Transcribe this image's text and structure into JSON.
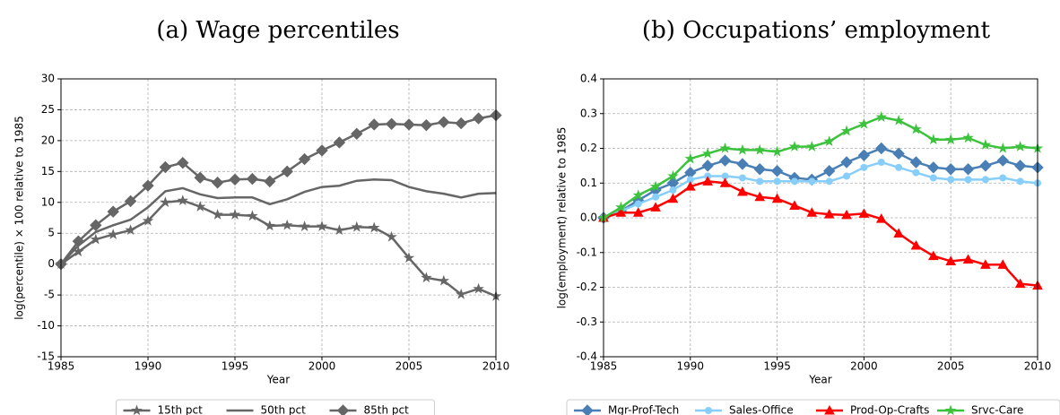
{
  "chart_data": [
    {
      "type": "line",
      "title": "(a) Wage percentiles",
      "xlabel": "Year",
      "ylabel": "log(percentile) × 100 relative to 1985",
      "x": [
        1985,
        1986,
        1987,
        1988,
        1989,
        1990,
        1991,
        1992,
        1993,
        1994,
        1995,
        1996,
        1997,
        1998,
        1999,
        2000,
        2001,
        2002,
        2003,
        2004,
        2005,
        2006,
        2007,
        2008,
        2009,
        2010
      ],
      "xlim": [
        1985,
        2010
      ],
      "xticks": [
        1985,
        1990,
        1995,
        2000,
        2005,
        2010
      ],
      "ylim": [
        -15,
        30
      ],
      "yticks": [
        -15,
        -10,
        -5,
        0,
        5,
        10,
        15,
        20,
        25,
        30
      ],
      "grid": true,
      "series": [
        {
          "name": "15th pct",
          "color": "#666666",
          "marker": "star",
          "values": [
            0,
            2,
            4,
            4.8,
            5.5,
            7,
            10,
            10.3,
            9.3,
            8,
            8,
            7.8,
            6.2,
            6.3,
            6.1,
            6.1,
            5.5,
            6,
            5.9,
            4.4,
            1,
            -2.2,
            -2.7,
            -4.9,
            -4,
            -5.2
          ]
        },
        {
          "name": "50th pct",
          "color": "#666666",
          "marker": "none",
          "values": [
            0,
            3,
            5.2,
            6.3,
            7.2,
            9.2,
            11.8,
            12.3,
            11.3,
            10.7,
            10.8,
            10.8,
            9.7,
            10.5,
            11.7,
            12.5,
            12.7,
            13.5,
            13.7,
            13.6,
            12.5,
            11.8,
            11.4,
            10.8,
            11.4,
            11.5
          ]
        },
        {
          "name": "85th pct",
          "color": "#666666",
          "marker": "diamond",
          "values": [
            0,
            3.7,
            6.3,
            8.5,
            10.2,
            12.7,
            15.7,
            16.4,
            14,
            13.2,
            13.7,
            13.8,
            13.4,
            15,
            17,
            18.4,
            19.7,
            21.1,
            22.6,
            22.7,
            22.6,
            22.5,
            23,
            22.8,
            23.6,
            24.1
          ]
        }
      ]
    },
    {
      "type": "line",
      "title": "(b) Occupations’ employment",
      "xlabel": "Year",
      "ylabel": "log(employment) relative to 1985",
      "x": [
        1985,
        1986,
        1987,
        1988,
        1989,
        1990,
        1991,
        1992,
        1993,
        1994,
        1995,
        1996,
        1997,
        1998,
        1999,
        2000,
        2001,
        2002,
        2003,
        2004,
        2005,
        2006,
        2007,
        2008,
        2009,
        2010
      ],
      "xlim": [
        1985,
        2010
      ],
      "xticks": [
        1985,
        1990,
        1995,
        2000,
        2005,
        2010
      ],
      "ylim": [
        -0.4,
        0.4
      ],
      "yticks": [
        -0.4,
        -0.3,
        -0.2,
        -0.1,
        {
          "value": 0,
          "label": "0.0"
        },
        0.1,
        0.2,
        0.3,
        0.4
      ],
      "grid": true,
      "series": [
        {
          "name": "Mgr-Prof-Tech",
          "color": "#4a7fb5",
          "marker": "diamond",
          "values": [
            0,
            0.02,
            0.05,
            0.08,
            0.1,
            0.13,
            0.15,
            0.165,
            0.155,
            0.14,
            0.135,
            0.115,
            0.11,
            0.135,
            0.16,
            0.18,
            0.2,
            0.185,
            0.16,
            0.145,
            0.14,
            0.14,
            0.15,
            0.165,
            0.15,
            0.145
          ]
        },
        {
          "name": "Sales-Office",
          "color": "#87cefa",
          "marker": "circle",
          "values": [
            0,
            0.02,
            0.04,
            0.06,
            0.08,
            0.11,
            0.12,
            0.12,
            0.115,
            0.105,
            0.105,
            0.105,
            0.105,
            0.105,
            0.12,
            0.145,
            0.16,
            0.145,
            0.13,
            0.115,
            0.11,
            0.11,
            0.11,
            0.115,
            0.105,
            0.1
          ]
        },
        {
          "name": "Prod-Op-Crafts",
          "color": "#ff0000",
          "marker": "triangle",
          "values": [
            0,
            0.015,
            0.015,
            0.03,
            0.055,
            0.09,
            0.105,
            0.1,
            0.075,
            0.06,
            0.055,
            0.035,
            0.015,
            0.01,
            0.008,
            0.012,
            -0.003,
            -0.045,
            -0.08,
            -0.11,
            -0.125,
            -0.12,
            -0.135,
            -0.135,
            -0.19,
            -0.195
          ]
        },
        {
          "name": "Srvc-Care",
          "color": "#3cc23c",
          "marker": "star",
          "values": [
            0,
            0.03,
            0.065,
            0.09,
            0.12,
            0.17,
            0.185,
            0.2,
            0.195,
            0.195,
            0.19,
            0.205,
            0.205,
            0.22,
            0.25,
            0.27,
            0.29,
            0.28,
            0.255,
            0.225,
            0.225,
            0.23,
            0.21,
            0.2,
            0.205,
            0.2
          ]
        }
      ]
    }
  ]
}
